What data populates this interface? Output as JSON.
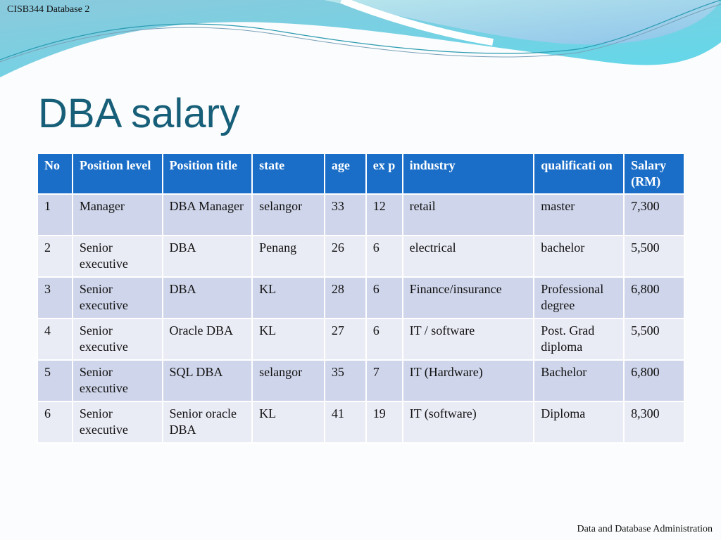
{
  "header": {
    "course": "CISB344 Database 2"
  },
  "slide": {
    "title": "DBA salary"
  },
  "table": {
    "columns": [
      "No",
      "Position level",
      "Position title",
      "state",
      "age",
      "ex p",
      "industry",
      "qualificati on",
      "Salary (RM)"
    ],
    "rows": [
      [
        "1",
        "Manager",
        "DBA Manager",
        "selangor",
        "33",
        "12",
        "retail",
        "master",
        "7,300"
      ],
      [
        "2",
        "Senior executive",
        "DBA",
        "Penang",
        "26",
        "6",
        "electrical",
        "bachelor",
        "5,500"
      ],
      [
        "3",
        "Senior executive",
        "DBA",
        "KL",
        "28",
        "6",
        "Finance/insurance",
        "Professional degree",
        "6,800"
      ],
      [
        "4",
        "Senior executive",
        "Oracle DBA",
        "KL",
        "27",
        "6",
        "IT / software",
        "Post. Grad diploma",
        "5,500"
      ],
      [
        "5",
        "Senior executive",
        "SQL DBA",
        "selangor",
        "35",
        "7",
        "IT (Hardware)",
        "Bachelor",
        "6,800"
      ],
      [
        "6",
        "Senior executive",
        "Senior oracle DBA",
        "KL",
        "41",
        "19",
        "IT (software)",
        "Diploma",
        "8,300"
      ]
    ]
  },
  "footer": {
    "text": "Data and Database Administration"
  },
  "colors": {
    "header": "#1a6ec8",
    "row_odd": "#cfd5ea",
    "row_even": "#e9ebf5",
    "title": "#175f79"
  }
}
